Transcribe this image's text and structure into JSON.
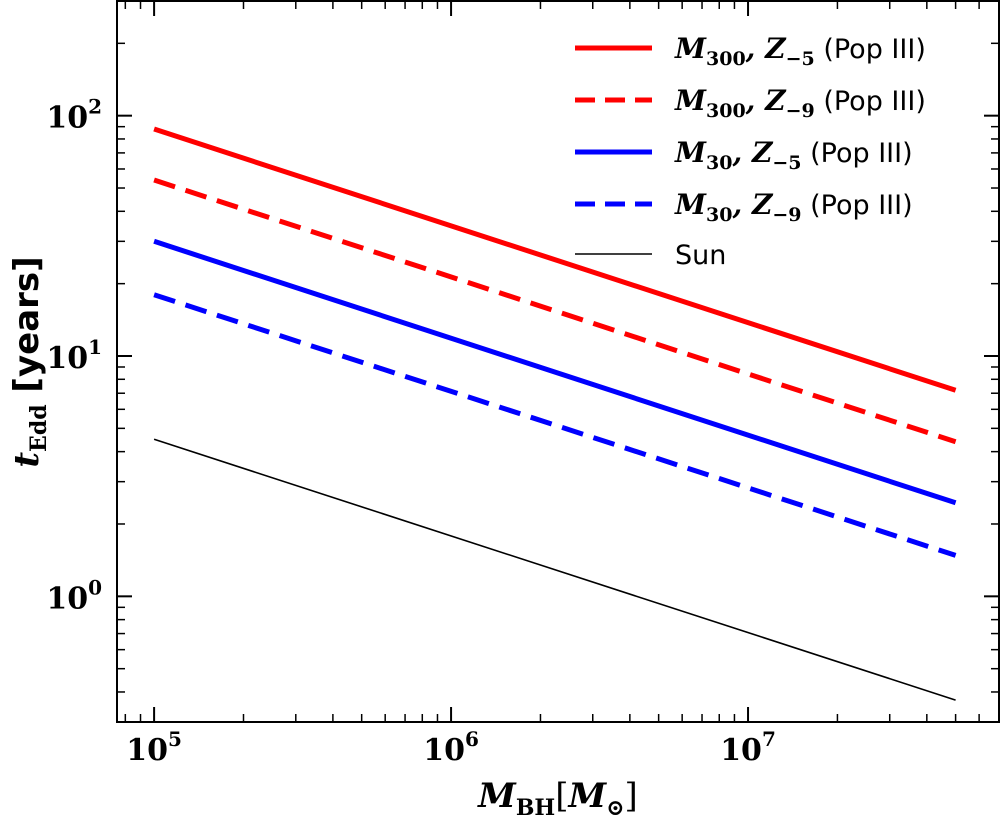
{
  "chart_data": {
    "type": "line",
    "xscale": "log",
    "yscale": "log",
    "xlim": [
      75000,
      70000000
    ],
    "ylim": [
      0.3,
      300
    ],
    "xticks": [
      {
        "value": 100000,
        "base": "10",
        "exp": "5"
      },
      {
        "value": 1000000,
        "base": "10",
        "exp": "6"
      },
      {
        "value": 10000000,
        "base": "10",
        "exp": "7"
      }
    ],
    "yticks": [
      {
        "value": 1,
        "base": "10",
        "exp": "0"
      },
      {
        "value": 10,
        "base": "10",
        "exp": "1"
      },
      {
        "value": 100,
        "base": "10",
        "exp": "2"
      }
    ],
    "xlabel": {
      "main": "M",
      "sub": "BH",
      "bracket_open": "[",
      "inner": "M",
      "inner_sub": "⊙",
      "bracket_close": "]"
    },
    "ylabel": {
      "main": "t",
      "sub": "Edd",
      "rest": " [years]"
    },
    "series": [
      {
        "name": "M300, Z-5 (Pop III)",
        "label_main": "M",
        "label_sub1": "300",
        "label_sep": ", Z",
        "label_sub2": "−5",
        "label_suffix": " (Pop III)",
        "color": "#ff0000",
        "style": "solid",
        "width": 5,
        "x": [
          100000,
          50000000
        ],
        "y": [
          88,
          7.2
        ]
      },
      {
        "name": "M300, Z-9 (Pop III)",
        "label_main": "M",
        "label_sub1": "300",
        "label_sep": ", Z",
        "label_sub2": "−9",
        "label_suffix": " (Pop III)",
        "color": "#ff0000",
        "style": "dashed",
        "width": 5,
        "x": [
          100000,
          50000000
        ],
        "y": [
          54,
          4.4
        ]
      },
      {
        "name": "M30, Z-5 (Pop III)",
        "label_main": "M",
        "label_sub1": "30",
        "label_sep": ", Z",
        "label_sub2": "−5",
        "label_suffix": " (Pop III)",
        "color": "#0000ff",
        "style": "solid",
        "width": 5,
        "x": [
          100000,
          50000000
        ],
        "y": [
          30,
          2.45
        ]
      },
      {
        "name": "M30, Z-9 (Pop III)",
        "label_main": "M",
        "label_sub1": "30",
        "label_sep": ", Z",
        "label_sub2": "−9",
        "label_suffix": " (Pop III)",
        "color": "#0000ff",
        "style": "dashed",
        "width": 5,
        "x": [
          100000,
          50000000
        ],
        "y": [
          18,
          1.48
        ]
      },
      {
        "name": "Sun",
        "label_plain": "Sun",
        "color": "#000000",
        "style": "solid",
        "width": 1.6,
        "x": [
          100000,
          50000000
        ],
        "y": [
          4.5,
          0.37
        ]
      }
    ],
    "legend_position": "top-right"
  }
}
